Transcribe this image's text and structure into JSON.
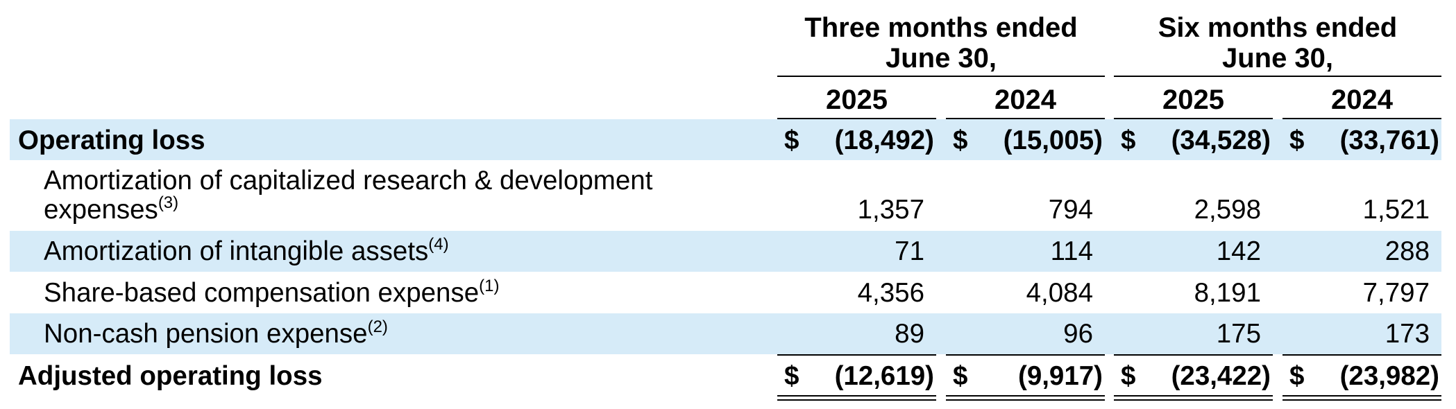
{
  "header": {
    "group_three": "Three months ended",
    "group_three_line2": "June 30,",
    "group_six": "Six months ended",
    "group_six_line2": "June 30,",
    "years": [
      "2025",
      "2024",
      "2025",
      "2024"
    ]
  },
  "rows": [
    {
      "label": "Operating loss",
      "values": [
        "(18,492)",
        "(15,005)",
        "(34,528)",
        "(33,761)"
      ],
      "currency": "$"
    },
    {
      "label": "Amortization of capitalized research & development",
      "label_line2": "expenses",
      "footnote": "(3)",
      "values": [
        "1,357",
        "794",
        "2,598",
        "1,521"
      ]
    },
    {
      "label": "Amortization of intangible assets",
      "footnote": "(4)",
      "values": [
        "71",
        "114",
        "142",
        "288"
      ]
    },
    {
      "label": "Share-based compensation expense",
      "footnote": "(1)",
      "values": [
        "4,356",
        "4,084",
        "8,191",
        "7,797"
      ]
    },
    {
      "label": "Non-cash pension expense",
      "footnote": "(2)",
      "values": [
        "89",
        "96",
        "175",
        "173"
      ]
    },
    {
      "label": "Adjusted operating loss",
      "values": [
        "(12,619)",
        "(9,917)",
        "(23,422)",
        "(23,982)"
      ],
      "currency": "$"
    }
  ],
  "colors": {
    "band": "#d6ebf8",
    "text": "#000000"
  }
}
